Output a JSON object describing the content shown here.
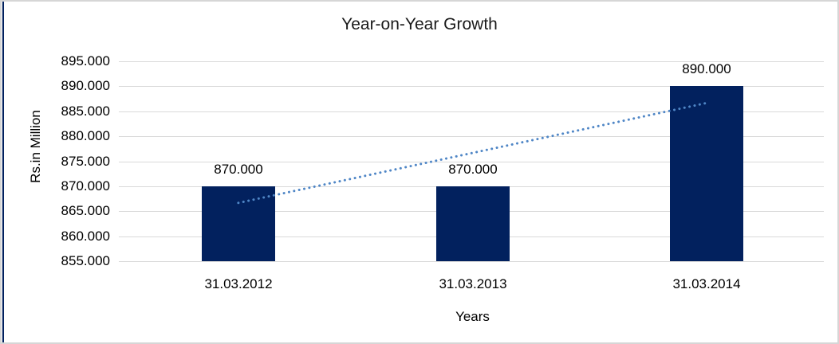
{
  "window": {
    "background": "#ffffff",
    "border_color": "#d6d6d6",
    "left_accent_color": "#02215E"
  },
  "chart_data": {
    "type": "bar",
    "title": "Year-on-Year Growth",
    "xlabel": "Years",
    "ylabel": "Rs.in Million",
    "categories": [
      "31.03.2012",
      "31.03.2013",
      "31.03.2014"
    ],
    "values": [
      870000,
      870000,
      890000
    ],
    "data_labels": [
      "870.000",
      "870.000",
      "890.000"
    ],
    "bar_color": "#02215E",
    "ylim": [
      855000,
      895000
    ],
    "ytick_step": 5000,
    "yticks": [
      {
        "value": 855000,
        "label": "855.000"
      },
      {
        "value": 860000,
        "label": "860.000"
      },
      {
        "value": 865000,
        "label": "865.000"
      },
      {
        "value": 870000,
        "label": "870.000"
      },
      {
        "value": 875000,
        "label": "875.000"
      },
      {
        "value": 880000,
        "label": "880.000"
      },
      {
        "value": 885000,
        "label": "885.000"
      },
      {
        "value": 890000,
        "label": "890.000"
      },
      {
        "value": 895000,
        "label": "895.000"
      }
    ],
    "grid": "horizontal",
    "gridline_color": "#d9d9d9",
    "legend": "none",
    "trendline": {
      "type": "linear",
      "style": "dotted",
      "color": "#4f86c6",
      "start_value": 866667,
      "end_value": 886667
    }
  }
}
